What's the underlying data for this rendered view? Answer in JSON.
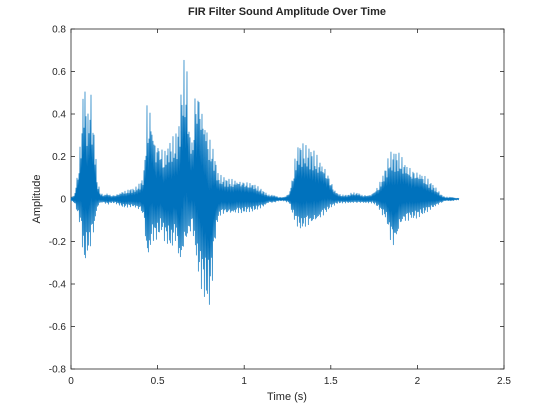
{
  "chart_data": {
    "type": "line",
    "title": "FIR Filter Sound Amplitude Over Time",
    "xlabel": "Time (s)",
    "ylabel": "Amplitude",
    "xlim": [
      0,
      2.5
    ],
    "ylim": [
      -0.8,
      0.8
    ],
    "xticks": [
      0,
      0.5,
      1,
      1.5,
      2,
      2.5
    ],
    "xtick_labels": [
      "0",
      "0.5",
      "1",
      "1.5",
      "2",
      "2.5"
    ],
    "yticks": [
      -0.8,
      -0.6,
      -0.4,
      -0.2,
      0,
      0.2,
      0.4,
      0.6,
      0.8
    ],
    "ytick_labels": [
      "-0.8",
      "-0.6",
      "-0.4",
      "-0.2",
      "0",
      "0.2",
      "0.4",
      "0.6",
      "0.8"
    ],
    "grid": false,
    "line_color": "#0072BD",
    "series": [
      {
        "name": "",
        "x": [
          0,
          0.02,
          0.04,
          0.06,
          0.07,
          0.08,
          0.09,
          0.1,
          0.11,
          0.12,
          0.13,
          0.14,
          0.15,
          0.17,
          0.19,
          0.21,
          0.23,
          0.25,
          0.28,
          0.3,
          0.32,
          0.34,
          0.36,
          0.38,
          0.4,
          0.42,
          0.44,
          0.45,
          0.46,
          0.47,
          0.48,
          0.49,
          0.5,
          0.52,
          0.54,
          0.56,
          0.58,
          0.6,
          0.62,
          0.63,
          0.64,
          0.65,
          0.66,
          0.67,
          0.68,
          0.7,
          0.72,
          0.74,
          0.76,
          0.78,
          0.8,
          0.81,
          0.82,
          0.83,
          0.85,
          0.87,
          0.9,
          0.93,
          0.96,
          0.99,
          1.02,
          1.05,
          1.08,
          1.11,
          1.14,
          1.17,
          1.2,
          1.23,
          1.26,
          1.28,
          1.3,
          1.32,
          1.34,
          1.36,
          1.38,
          1.4,
          1.42,
          1.44,
          1.46,
          1.48,
          1.5,
          1.52,
          1.54,
          1.56,
          1.58,
          1.6,
          1.62,
          1.64,
          1.66,
          1.68,
          1.7,
          1.72,
          1.74,
          1.76,
          1.78,
          1.8,
          1.82,
          1.84,
          1.86,
          1.88,
          1.9,
          1.92,
          1.94,
          1.96,
          1.98,
          2,
          2.02,
          2.04,
          2.06,
          2.08,
          2.1,
          2.12,
          2.14,
          2.16,
          2.18,
          2.2,
          2.22,
          2.24
        ],
        "y_max": [
          0.01,
          0.02,
          0.15,
          0.35,
          0.55,
          0.58,
          0.45,
          0.4,
          0.55,
          0.45,
          0.35,
          0.28,
          0.1,
          0.03,
          0.02,
          0.03,
          0.02,
          0.02,
          0.03,
          0.04,
          0.04,
          0.05,
          0.05,
          0.06,
          0.08,
          0.12,
          0.5,
          0.45,
          0.49,
          0.4,
          0.35,
          0.3,
          0.32,
          0.28,
          0.25,
          0.28,
          0.3,
          0.3,
          0.35,
          0.45,
          0.58,
          0.68,
          0.62,
          0.65,
          0.4,
          0.3,
          0.62,
          0.6,
          0.48,
          0.4,
          0.3,
          0.3,
          0.25,
          0.22,
          0.12,
          0.11,
          0.1,
          0.1,
          0.1,
          0.1,
          0.09,
          0.08,
          0.06,
          0.04,
          0.02,
          0.02,
          0.01,
          0.01,
          0.03,
          0.12,
          0.25,
          0.28,
          0.27,
          0.25,
          0.25,
          0.24,
          0.22,
          0.2,
          0.18,
          0.15,
          0.1,
          0.05,
          0.03,
          0.02,
          0.02,
          0.02,
          0.03,
          0.03,
          0.03,
          0.02,
          0.02,
          0.02,
          0.03,
          0.05,
          0.08,
          0.12,
          0.17,
          0.22,
          0.23,
          0.23,
          0.22,
          0.2,
          0.18,
          0.17,
          0.16,
          0.15,
          0.14,
          0.12,
          0.1,
          0.08,
          0.06,
          0.04,
          0.02,
          0.01,
          0.01,
          0.01,
          0.005,
          0.005
        ],
        "y_min": [
          -0.01,
          -0.02,
          -0.08,
          -0.15,
          -0.3,
          -0.34,
          -0.25,
          -0.3,
          -0.25,
          -0.2,
          -0.18,
          -0.12,
          -0.05,
          -0.02,
          -0.02,
          -0.03,
          -0.02,
          -0.02,
          -0.03,
          -0.04,
          -0.04,
          -0.04,
          -0.04,
          -0.05,
          -0.06,
          -0.1,
          -0.35,
          -0.3,
          -0.25,
          -0.2,
          -0.22,
          -0.2,
          -0.2,
          -0.15,
          -0.2,
          -0.22,
          -0.25,
          -0.2,
          -0.3,
          -0.38,
          -0.32,
          -0.28,
          -0.25,
          -0.22,
          -0.2,
          -0.15,
          -0.3,
          -0.4,
          -0.45,
          -0.5,
          -0.52,
          -0.45,
          -0.35,
          -0.22,
          -0.1,
          -0.08,
          -0.08,
          -0.08,
          -0.07,
          -0.07,
          -0.06,
          -0.06,
          -0.05,
          -0.04,
          -0.02,
          -0.02,
          -0.01,
          -0.01,
          -0.02,
          -0.08,
          -0.12,
          -0.15,
          -0.15,
          -0.14,
          -0.14,
          -0.13,
          -0.12,
          -0.1,
          -0.08,
          -0.06,
          -0.04,
          -0.03,
          -0.02,
          -0.02,
          -0.02,
          -0.02,
          -0.02,
          -0.02,
          -0.02,
          -0.02,
          -0.02,
          -0.02,
          -0.02,
          -0.03,
          -0.05,
          -0.08,
          -0.1,
          -0.2,
          -0.25,
          -0.22,
          -0.15,
          -0.12,
          -0.12,
          -0.1,
          -0.1,
          -0.09,
          -0.08,
          -0.07,
          -0.06,
          -0.05,
          -0.04,
          -0.03,
          -0.02,
          -0.01,
          -0.01,
          -0.01,
          -0.005,
          -0.005
        ]
      }
    ]
  }
}
